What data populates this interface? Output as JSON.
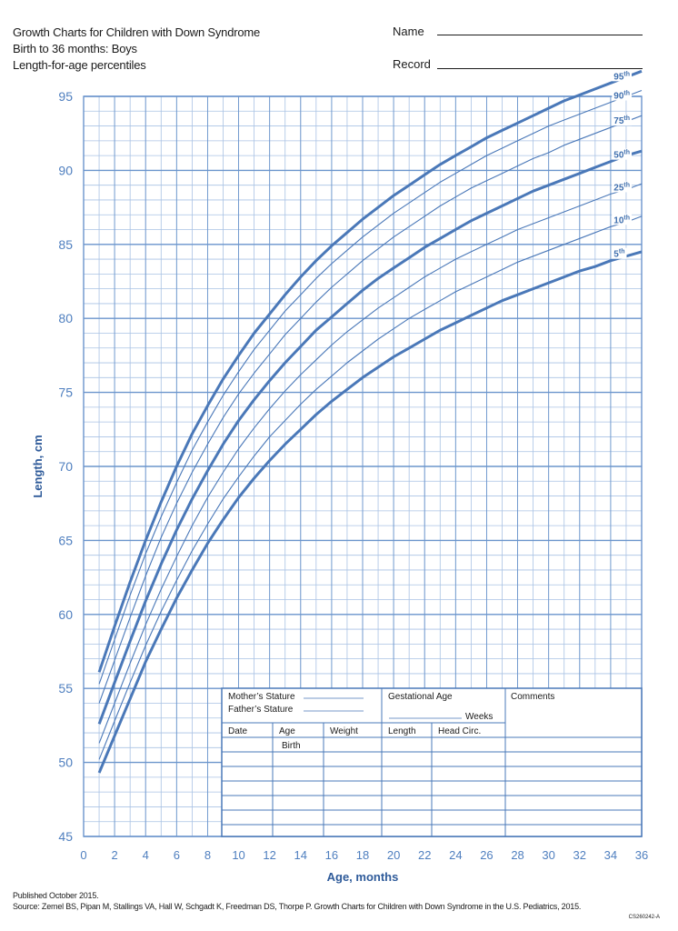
{
  "header": {
    "title": "Growth Charts for Children with Down Syndrome",
    "subtitle": "Birth to 36 months: Boys",
    "metric": "Length-for-age percentiles",
    "name_label": "Name",
    "record_label": "Record"
  },
  "form": {
    "mothers_stature": "Mother’s Stature",
    "fathers_stature": "Father’s Stature",
    "gestational_age": "Gestational Age",
    "weeks": "Weeks",
    "comments": "Comments",
    "date": "Date",
    "age": "Age",
    "weight": "Weight",
    "length": "Length",
    "head_circ": "Head Circ.",
    "birth": "Birth"
  },
  "footer": {
    "published": "Published October 2015.",
    "source": "Source: Zemel BS, Pipan M, Stallings VA, Hall W, Schgadt K, Freedman DS, Thorpe P. Growth Charts for Children with Down Syndrome in the U.S. Pediatrics, 2015.",
    "code": "CS260242-A"
  },
  "colors": {
    "grid": "#a9c2e4",
    "major_grid": "#6b95cc",
    "curve": "#4a78b8",
    "text": "#4f7fbf"
  },
  "chart_data": {
    "type": "line",
    "title": "Growth Charts for Children with Down Syndrome",
    "xlabel": "Age, months",
    "ylabel": "Length, cm",
    "xlim": [
      0,
      36
    ],
    "ylim": [
      45,
      95
    ],
    "xticks": [
      0,
      2,
      4,
      6,
      8,
      10,
      12,
      14,
      16,
      18,
      20,
      22,
      24,
      26,
      28,
      30,
      32,
      34,
      36
    ],
    "yticks": [
      45,
      50,
      55,
      60,
      65,
      70,
      75,
      80,
      85,
      90,
      95
    ],
    "grid": true,
    "x": [
      1,
      2,
      3,
      4,
      5,
      6,
      7,
      8,
      9,
      10,
      11,
      12,
      13,
      14,
      15,
      16,
      17,
      18,
      19,
      20,
      21,
      22,
      23,
      24,
      25,
      26,
      27,
      28,
      29,
      30,
      31,
      32,
      33,
      34,
      35,
      36
    ],
    "series": [
      {
        "name": "95",
        "label": "95",
        "sup": "th",
        "bold": true,
        "values": [
          56.1,
          59.2,
          62.2,
          65.0,
          67.6,
          70.0,
          72.2,
          74.1,
          75.9,
          77.5,
          79.0,
          80.3,
          81.6,
          82.8,
          83.9,
          84.9,
          85.8,
          86.7,
          87.5,
          88.3,
          89.0,
          89.7,
          90.4,
          91.0,
          91.6,
          92.2,
          92.7,
          93.2,
          93.7,
          94.2,
          94.7,
          95.1,
          95.5,
          95.9,
          96.3,
          96.7
        ]
      },
      {
        "name": "90",
        "label": "90",
        "sup": "th",
        "bold": false,
        "values": [
          55.3,
          58.3,
          61.3,
          64.1,
          66.6,
          68.9,
          71.1,
          73.0,
          74.8,
          76.4,
          77.9,
          79.2,
          80.5,
          81.6,
          82.7,
          83.7,
          84.6,
          85.5,
          86.3,
          87.1,
          87.8,
          88.5,
          89.2,
          89.8,
          90.4,
          91.0,
          91.5,
          92.0,
          92.5,
          93.0,
          93.4,
          93.8,
          94.2,
          94.6,
          95.0,
          95.4
        ]
      },
      {
        "name": "75",
        "label": "75",
        "sup": "th",
        "bold": false,
        "values": [
          54.0,
          56.9,
          59.8,
          62.6,
          65.2,
          67.5,
          69.6,
          71.5,
          73.3,
          74.9,
          76.3,
          77.6,
          78.9,
          80.0,
          81.1,
          82.1,
          83.0,
          83.9,
          84.7,
          85.5,
          86.2,
          86.9,
          87.6,
          88.2,
          88.8,
          89.3,
          89.8,
          90.3,
          90.8,
          91.2,
          91.7,
          92.1,
          92.5,
          92.9,
          93.3,
          93.7
        ]
      },
      {
        "name": "50",
        "label": "50",
        "sup": "th",
        "bold": true,
        "values": [
          52.6,
          55.4,
          58.2,
          60.9,
          63.4,
          65.7,
          67.8,
          69.7,
          71.5,
          73.1,
          74.5,
          75.8,
          77.0,
          78.1,
          79.2,
          80.1,
          81.0,
          81.9,
          82.7,
          83.4,
          84.1,
          84.8,
          85.4,
          86.0,
          86.6,
          87.1,
          87.6,
          88.1,
          88.6,
          89.0,
          89.4,
          89.8,
          90.2,
          90.6,
          91.0,
          91.3
        ]
      },
      {
        "name": "25",
        "label": "25",
        "sup": "th",
        "bold": false,
        "values": [
          51.3,
          54.0,
          56.7,
          59.3,
          61.7,
          63.9,
          66.0,
          67.9,
          69.6,
          71.2,
          72.6,
          73.9,
          75.1,
          76.2,
          77.2,
          78.2,
          79.1,
          79.9,
          80.7,
          81.4,
          82.1,
          82.8,
          83.4,
          84.0,
          84.5,
          85.0,
          85.5,
          86.0,
          86.4,
          86.8,
          87.2,
          87.6,
          88.0,
          88.4,
          88.7,
          89.1
        ]
      },
      {
        "name": "10",
        "label": "10",
        "sup": "th",
        "bold": false,
        "values": [
          50.2,
          52.8,
          55.4,
          57.9,
          60.2,
          62.3,
          64.3,
          66.1,
          67.8,
          69.3,
          70.7,
          72.0,
          73.1,
          74.2,
          75.2,
          76.1,
          77.0,
          77.8,
          78.6,
          79.3,
          80.0,
          80.6,
          81.2,
          81.8,
          82.3,
          82.8,
          83.3,
          83.8,
          84.2,
          84.6,
          85.0,
          85.4,
          85.8,
          86.2,
          86.5,
          86.9
        ]
      },
      {
        "name": "5",
        "label": "5",
        "sup": "th",
        "bold": true,
        "values": [
          49.3,
          51.8,
          54.3,
          56.8,
          59.0,
          61.1,
          63.0,
          64.8,
          66.4,
          67.9,
          69.2,
          70.4,
          71.5,
          72.5,
          73.5,
          74.4,
          75.2,
          76.0,
          76.7,
          77.4,
          78.0,
          78.6,
          79.2,
          79.7,
          80.2,
          80.7,
          81.2,
          81.6,
          82.0,
          82.4,
          82.8,
          83.2,
          83.5,
          83.9,
          84.2,
          84.5
        ]
      }
    ]
  }
}
